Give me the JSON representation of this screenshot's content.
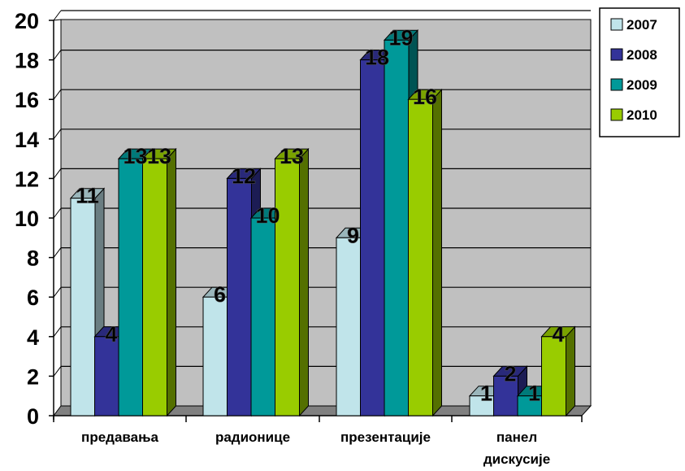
{
  "chart_data": {
    "type": "bar",
    "categories": [
      "предавања",
      "радионице",
      "презентације",
      "панел дискусије"
    ],
    "series": [
      {
        "name": "2007",
        "values": [
          11,
          6,
          9,
          1
        ],
        "color": "#c0e4ea"
      },
      {
        "name": "2008",
        "values": [
          4,
          12,
          18,
          2
        ],
        "color": "#333399"
      },
      {
        "name": "2009",
        "values": [
          13,
          10,
          19,
          1
        ],
        "color": "#009999"
      },
      {
        "name": "2010",
        "values": [
          13,
          13,
          16,
          4
        ],
        "color": "#99cc00"
      }
    ],
    "ylim": [
      0,
      20
    ],
    "yticks": [
      0,
      2,
      4,
      6,
      8,
      10,
      12,
      14,
      16,
      18,
      20
    ],
    "grid": true,
    "plot_background": "#c0c0c0",
    "legend": "top-right",
    "data_labels": true,
    "style": "3d-clustered-column"
  }
}
